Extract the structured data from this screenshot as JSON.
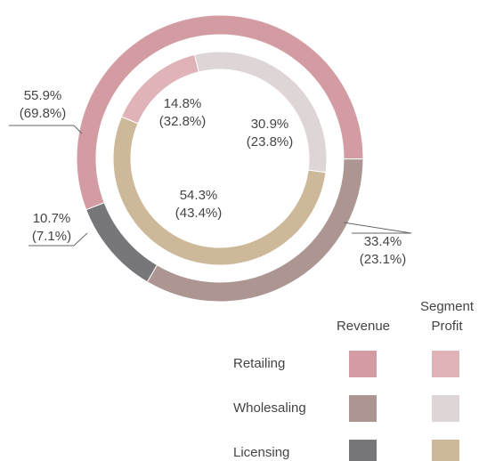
{
  "chart_data": {
    "type": "nested-donut",
    "categories": [
      "Retailing",
      "Wholesaling",
      "Licensing"
    ],
    "series": [
      {
        "name": "Revenue",
        "colors": [
          "#d39ca3",
          "#ad9592",
          "#77777a"
        ],
        "values": [
          55.9,
          33.4,
          10.7
        ],
        "value_labels": [
          "55.9%",
          "33.4%",
          "10.7%"
        ],
        "secondary_values": [
          69.8,
          23.1,
          7.1
        ],
        "secondary_value_labels": [
          "(69.8%)",
          "(23.1%)",
          "(7.1%)"
        ]
      },
      {
        "name": "Segment Profit",
        "colors": [
          "#dfb3b8",
          "#ddd5d6",
          "#cdb99a"
        ],
        "values": [
          14.8,
          30.9,
          54.3
        ],
        "value_labels": [
          "14.8%",
          "30.9%",
          "54.3%"
        ],
        "secondary_values": [
          32.8,
          23.8,
          43.4
        ],
        "secondary_value_labels": [
          "(32.8%)",
          "(23.8%)",
          "(43.4%)"
        ]
      }
    ]
  }
}
